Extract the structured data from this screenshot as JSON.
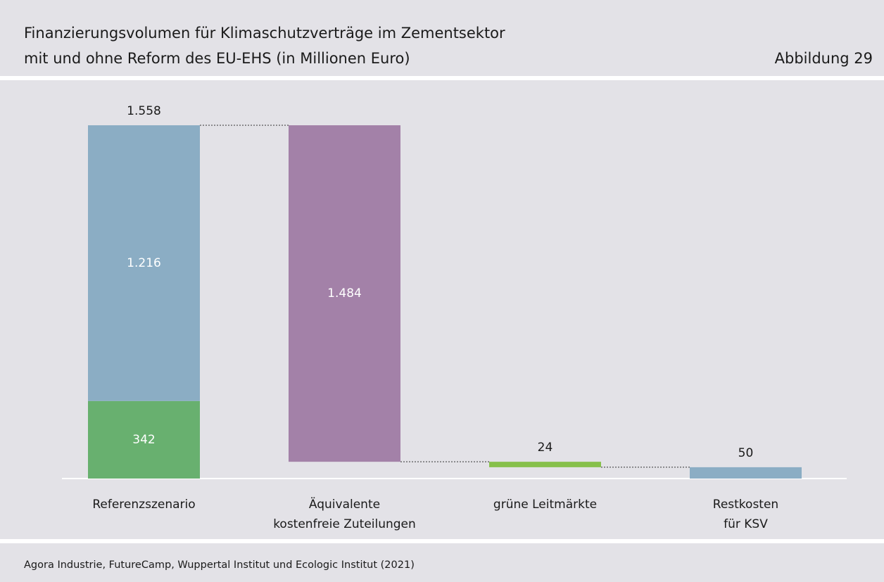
{
  "chart_data": {
    "type": "waterfall",
    "title": [
      "Finanzierungsvolumen für Klimaschutzverträge im Zementsektor",
      "mit und ohne Reform des EU-EHS (in Millionen Euro)"
    ],
    "figure_label": "Abbildung 29",
    "source": "Agora Industrie, FutureCamp, Wuppertal Institut und Ecologic Institut (2021)",
    "categories": [
      [
        "Referenzszenario"
      ],
      [
        "Äquivalente",
        "kostenfreie Zuteilungen"
      ],
      [
        "grüne Leitmärkte"
      ],
      [
        "Restkosten",
        "für KSV"
      ]
    ],
    "bars": [
      {
        "direction": "up",
        "segments": [
          {
            "value": 342,
            "value_label": "342",
            "color": "#68b06f"
          },
          {
            "value": 1216,
            "value_label": "1.216",
            "color": "#8badc4"
          }
        ],
        "total": {
          "value": 1558,
          "label": "1.558"
        }
      },
      {
        "direction": "down",
        "value": 1484,
        "value_label": "1.484",
        "color": "#a381a8"
      },
      {
        "direction": "down",
        "value": 24,
        "value_label": "24",
        "color": "#86c04b"
      },
      {
        "direction": "total",
        "value": 50,
        "value_label": "50",
        "color": "#8badc4"
      }
    ]
  }
}
